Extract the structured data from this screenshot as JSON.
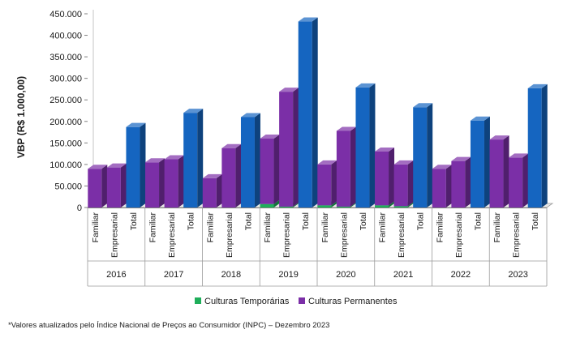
{
  "chart_data": {
    "type": "bar",
    "stacked": true,
    "three_d": true,
    "ylabel": "VBP (R$ 1.000,00)",
    "ylim": [
      0,
      450000
    ],
    "yticks": [
      0,
      50000,
      100000,
      150000,
      200000,
      250000,
      300000,
      350000,
      400000,
      450000
    ],
    "ytick_labels": [
      "0",
      "50.000",
      "100.000",
      "150.000",
      "200.000",
      "250.000",
      "300.000",
      "350.000",
      "400.000",
      "450.000"
    ],
    "grid": false,
    "legend_position": "bottom",
    "groups": [
      "2016",
      "2017",
      "2018",
      "2019",
      "2020",
      "2021",
      "2022",
      "2023"
    ],
    "categories": [
      "Familiar",
      "Empresarial",
      "Total"
    ],
    "series": [
      {
        "name": "Culturas Temporárias",
        "color": "#1fae5a",
        "values": [
          [
            0,
            0,
            0
          ],
          [
            0,
            0,
            0
          ],
          [
            0,
            0,
            0
          ],
          [
            8000,
            2000,
            0
          ],
          [
            5000,
            2000,
            0
          ],
          [
            5000,
            3000,
            0
          ],
          [
            0,
            0,
            0
          ],
          [
            0,
            0,
            0
          ]
        ]
      },
      {
        "name": "Culturas Permanentes",
        "color": "#7b2fa7",
        "values": [
          [
            90000,
            93000,
            0
          ],
          [
            105000,
            112000,
            0
          ],
          [
            68000,
            138000,
            0
          ],
          [
            152000,
            267000,
            0
          ],
          [
            95000,
            176000,
            0
          ],
          [
            125000,
            97000,
            0
          ],
          [
            90000,
            108000,
            0
          ],
          [
            158000,
            116000,
            0
          ]
        ]
      },
      {
        "name": "Total",
        "color": "#1565c0",
        "values": [
          [
            0,
            0,
            187000
          ],
          [
            0,
            0,
            220000
          ],
          [
            0,
            0,
            210000
          ],
          [
            0,
            0,
            432000
          ],
          [
            0,
            0,
            279000
          ],
          [
            0,
            0,
            233000
          ],
          [
            0,
            0,
            202000
          ],
          [
            0,
            0,
            277000
          ]
        ]
      }
    ],
    "legend": [
      "Culturas Temporárias",
      "Culturas Permanentes"
    ]
  },
  "footnote": "*Valores atualizados pelo Índice Nacional de Preços ao Consumidor (INPC) – Dezembro 2023"
}
